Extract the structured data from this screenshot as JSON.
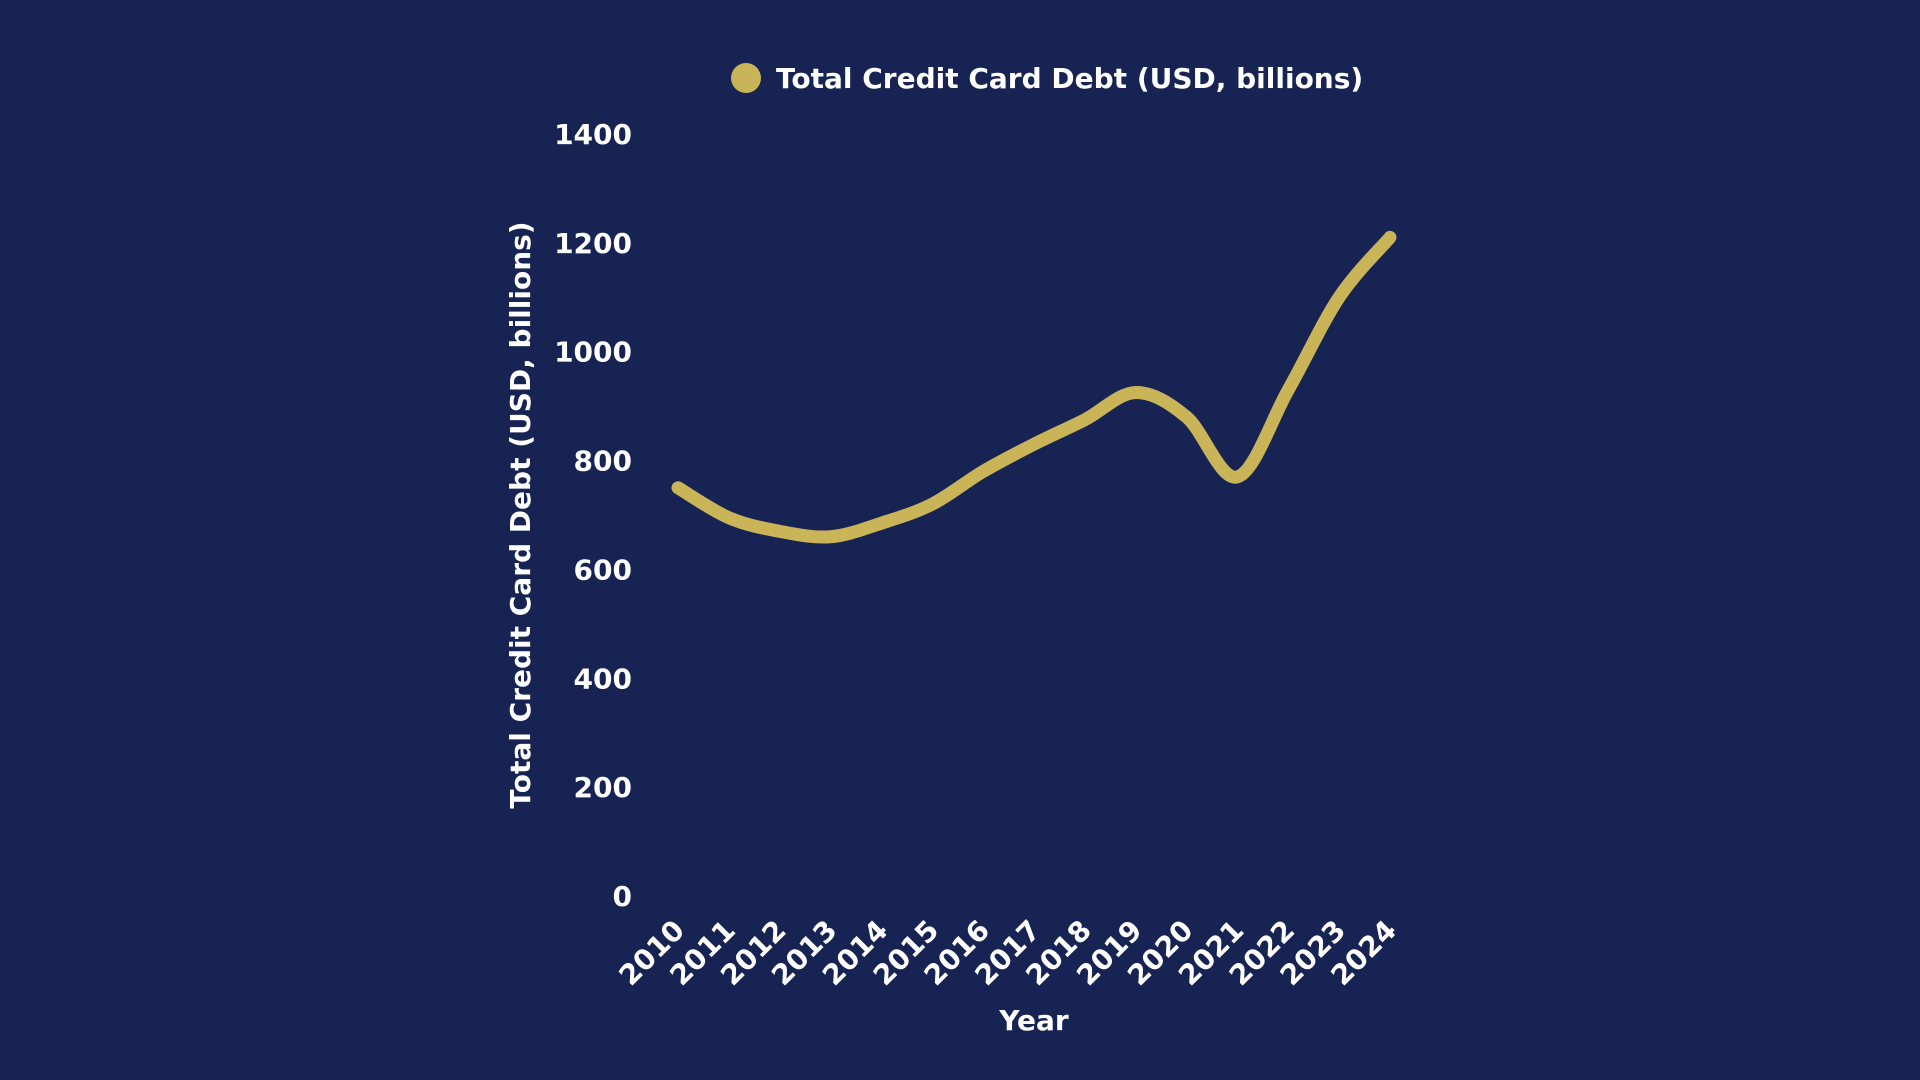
{
  "chart_data": {
    "type": "line",
    "title": "",
    "xlabel": "Year",
    "ylabel": "Total Credit Card Debt (USD, billions)",
    "ylim": [
      0,
      1400
    ],
    "yticks": [
      0,
      200,
      400,
      600,
      800,
      1000,
      1200,
      1400
    ],
    "grid": false,
    "legend_position": "top-center",
    "categories": [
      "2010",
      "2011",
      "2012",
      "2013",
      "2014",
      "2015",
      "2016",
      "2017",
      "2018",
      "2019",
      "2020",
      "2021",
      "2022",
      "2023",
      "2024"
    ],
    "series": [
      {
        "name": "Total Credit Card Debt (USD, billions)",
        "color": "#c9b458",
        "values": [
          750,
          695,
          670,
          660,
          685,
          720,
          780,
          830,
          875,
          925,
          880,
          770,
          930,
          1100,
          1210
        ]
      }
    ]
  },
  "colors": {
    "background": "#172353",
    "text": "#ffffff",
    "series": "#c9b458"
  }
}
